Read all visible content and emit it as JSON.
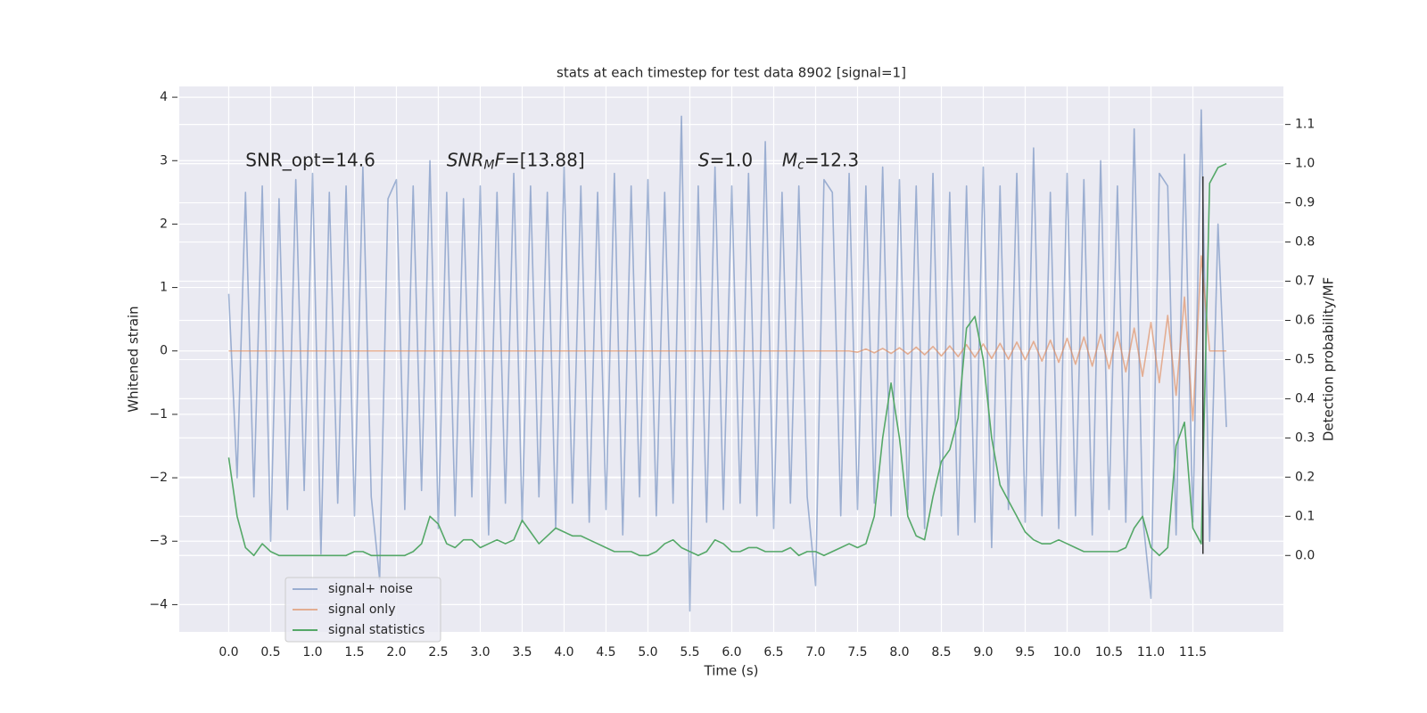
{
  "chart_data": {
    "type": "line",
    "title": "stats at each timestep for test data 8902 [signal=1]",
    "xlabel": "Time (s)",
    "ylabel": "Whitened strain",
    "y2label": "Detection probability/MF",
    "x": [
      0.0,
      0.1,
      0.2,
      0.3,
      0.4,
      0.5,
      0.6,
      0.7,
      0.8,
      0.9,
      1.0,
      1.1,
      1.2,
      1.3,
      1.4,
      1.5,
      1.6,
      1.7,
      1.8,
      1.9,
      2.0,
      2.1,
      2.2,
      2.3,
      2.4,
      2.5,
      2.6,
      2.7,
      2.8,
      2.9,
      3.0,
      3.1,
      3.2,
      3.3,
      3.4,
      3.5,
      3.6,
      3.7,
      3.8,
      3.9,
      4.0,
      4.1,
      4.2,
      4.3,
      4.4,
      4.5,
      4.6,
      4.7,
      4.8,
      4.9,
      5.0,
      5.1,
      5.2,
      5.3,
      5.4,
      5.5,
      5.6,
      5.7,
      5.8,
      5.9,
      6.0,
      6.1,
      6.2,
      6.3,
      6.4,
      6.5,
      6.6,
      6.7,
      6.8,
      6.9,
      7.0,
      7.1,
      7.2,
      7.3,
      7.4,
      7.5,
      7.6,
      7.7,
      7.8,
      7.9,
      8.0,
      8.1,
      8.2,
      8.3,
      8.4,
      8.5,
      8.6,
      8.7,
      8.8,
      8.9,
      9.0,
      9.1,
      9.2,
      9.3,
      9.4,
      9.5,
      9.6,
      9.7,
      9.8,
      9.9,
      10.0,
      10.1,
      10.2,
      10.3,
      10.4,
      10.5,
      10.6,
      10.7,
      10.8,
      10.9,
      11.0,
      11.1,
      11.2,
      11.3,
      11.4,
      11.5,
      11.6,
      11.7,
      11.8,
      11.9
    ],
    "series": [
      {
        "name": "signal+ noise",
        "color": "#4c72b0",
        "alpha": 0.5,
        "values": [
          0.9,
          -2.0,
          2.5,
          -2.3,
          2.6,
          -3.0,
          2.4,
          -2.5,
          2.7,
          -2.2,
          2.8,
          -3.2,
          2.5,
          -2.4,
          2.6,
          -2.6,
          2.9,
          -2.3,
          -3.6,
          2.4,
          2.7,
          -2.5,
          2.6,
          -2.2,
          3.0,
          -2.8,
          2.5,
          -2.6,
          2.4,
          -2.3,
          2.6,
          -2.9,
          2.5,
          -2.4,
          2.8,
          -2.7,
          2.6,
          -2.3,
          2.5,
          -2.8,
          2.9,
          -2.4,
          2.6,
          -2.7,
          2.5,
          -2.5,
          2.8,
          -2.9,
          2.6,
          -2.3,
          2.7,
          -2.6,
          2.5,
          -2.4,
          3.7,
          -4.1,
          2.6,
          -2.7,
          2.9,
          -2.5,
          2.6,
          -2.4,
          2.8,
          -2.6,
          3.3,
          -2.8,
          2.5,
          -2.4,
          2.6,
          -2.3,
          -3.7,
          2.7,
          2.5,
          -2.6,
          2.8,
          -2.5,
          2.6,
          -2.4,
          2.9,
          -2.6,
          2.7,
          -2.5,
          2.6,
          -2.8,
          2.8,
          -2.6,
          2.5,
          -2.9,
          2.6,
          -2.7,
          2.9,
          -3.1,
          2.6,
          -2.5,
          2.8,
          -2.7,
          3.2,
          -2.6,
          2.5,
          -2.8,
          2.8,
          -2.6,
          2.7,
          -2.9,
          3.0,
          -2.5,
          2.6,
          -2.7,
          3.5,
          -2.6,
          -3.9,
          2.8,
          2.6,
          -2.9,
          3.1,
          -2.7,
          3.8,
          -3.0,
          2.0,
          -1.2
        ]
      },
      {
        "name": "signal only",
        "color": "#dd8452",
        "alpha": 0.6,
        "values": [
          0,
          0,
          0,
          0,
          0,
          0,
          0,
          0,
          0,
          0,
          0,
          0,
          0,
          0,
          0,
          0,
          0,
          0,
          0,
          0,
          0,
          0,
          0,
          0,
          0,
          0,
          0,
          0,
          0,
          0,
          0,
          0,
          0,
          0,
          0,
          0,
          0,
          0,
          0,
          0,
          0,
          0,
          0,
          0,
          0,
          0,
          0,
          0,
          0,
          0,
          0,
          0,
          0,
          0,
          0,
          0,
          0,
          0,
          0,
          0,
          0,
          0,
          0,
          0,
          0,
          0,
          0,
          0,
          0,
          0,
          0,
          0,
          0,
          0,
          0,
          -0.02,
          0.03,
          -0.03,
          0.04,
          -0.04,
          0.05,
          -0.05,
          0.06,
          -0.06,
          0.07,
          -0.08,
          0.08,
          -0.09,
          0.1,
          -0.1,
          0.11,
          -0.12,
          0.12,
          -0.13,
          0.14,
          -0.14,
          0.15,
          -0.16,
          0.17,
          -0.18,
          0.2,
          -0.21,
          0.22,
          -0.24,
          0.26,
          -0.28,
          0.3,
          -0.33,
          0.36,
          -0.4,
          0.45,
          -0.5,
          0.56,
          -0.7,
          0.85,
          -1.1,
          1.5,
          0,
          0,
          0
        ]
      },
      {
        "name": "signal statistics",
        "color": "#55a868",
        "alpha": 1,
        "axis": "y2",
        "values": [
          0.25,
          0.1,
          0.02,
          0.0,
          0.03,
          0.01,
          0.0,
          0.0,
          0.0,
          0.0,
          0.0,
          0.0,
          0.0,
          0.0,
          0.0,
          0.01,
          0.01,
          0.0,
          0.0,
          0.0,
          0.0,
          0.0,
          0.01,
          0.03,
          0.1,
          0.08,
          0.03,
          0.02,
          0.04,
          0.04,
          0.02,
          0.03,
          0.04,
          0.03,
          0.04,
          0.09,
          0.06,
          0.03,
          0.05,
          0.07,
          0.06,
          0.05,
          0.05,
          0.04,
          0.03,
          0.02,
          0.01,
          0.01,
          0.01,
          0.0,
          0.0,
          0.01,
          0.03,
          0.04,
          0.02,
          0.01,
          0.0,
          0.01,
          0.04,
          0.03,
          0.01,
          0.01,
          0.02,
          0.02,
          0.01,
          0.01,
          0.01,
          0.02,
          0.0,
          0.01,
          0.01,
          0.0,
          0.01,
          0.02,
          0.03,
          0.02,
          0.03,
          0.1,
          0.3,
          0.44,
          0.3,
          0.1,
          0.05,
          0.04,
          0.15,
          0.24,
          0.27,
          0.35,
          0.58,
          0.61,
          0.5,
          0.3,
          0.18,
          0.14,
          0.1,
          0.06,
          0.04,
          0.03,
          0.03,
          0.04,
          0.03,
          0.02,
          0.01,
          0.01,
          0.01,
          0.01,
          0.01,
          0.02,
          0.07,
          0.1,
          0.02,
          0.0,
          0.02,
          0.28,
          0.34,
          0.07,
          0.03,
          0.95,
          0.99,
          1.0
        ]
      }
    ],
    "vline": {
      "x": 11.62,
      "ymin": -3.2,
      "ymax": 2.75,
      "color": "#333333"
    },
    "annotations": [
      [
        {
          "text": "SNR_opt=14.6"
        }
      ],
      [
        {
          "text": "SNR",
          "italic": true
        },
        {
          "text": "M",
          "italic": true,
          "sub": true
        },
        {
          "text": "F",
          "italic": true
        },
        {
          "text": "=[13.88]"
        }
      ],
      [
        {
          "text": "S",
          "italic": true
        },
        {
          "text": "=1.0"
        }
      ],
      [
        {
          "text": "M",
          "italic": true
        },
        {
          "text": "c",
          "italic": true,
          "sub": true
        },
        {
          "text": "=12.3"
        }
      ]
    ],
    "xlim": [
      -0.59,
      12.58
    ],
    "xticks": [
      {
        "value": 0,
        "label": "0.0"
      },
      {
        "value": 0.5,
        "label": "0.5"
      },
      {
        "value": 1,
        "label": "1.0"
      },
      {
        "value": 1.5,
        "label": "1.5"
      },
      {
        "value": 2,
        "label": "2.0"
      },
      {
        "value": 2.5,
        "label": "2.5"
      },
      {
        "value": 3,
        "label": "3.0"
      },
      {
        "value": 3.5,
        "label": "3.5"
      },
      {
        "value": 4,
        "label": "4.0"
      },
      {
        "value": 4.5,
        "label": "4.5"
      },
      {
        "value": 5,
        "label": "5.0"
      },
      {
        "value": 5.5,
        "label": "5.5"
      },
      {
        "value": 6,
        "label": "6.0"
      },
      {
        "value": 6.5,
        "label": "6.5"
      },
      {
        "value": 7,
        "label": "7.0"
      },
      {
        "value": 7.5,
        "label": "7.5"
      },
      {
        "value": 8,
        "label": "8.0"
      },
      {
        "value": 8.5,
        "label": "8.5"
      },
      {
        "value": 9,
        "label": "9.0"
      },
      {
        "value": 9.5,
        "label": "9.5"
      },
      {
        "value": 10,
        "label": "10.0"
      },
      {
        "value": 10.5,
        "label": "10.5"
      },
      {
        "value": 11,
        "label": "11.0"
      },
      {
        "value": 11.5,
        "label": "11.5"
      }
    ],
    "ylim": [
      -4.43,
      4.17
    ],
    "yticks": [
      {
        "value": -4,
        "label": "−4"
      },
      {
        "value": -3,
        "label": "−3"
      },
      {
        "value": -2,
        "label": "−2"
      },
      {
        "value": -1,
        "label": "−1"
      },
      0,
      1,
      2,
      3,
      4
    ],
    "y2lim": [
      -0.195,
      1.197
    ],
    "y2ticks": [
      {
        "value": 0,
        "label": "0.0"
      },
      0.1,
      0.2,
      0.3,
      0.4,
      0.5,
      0.6,
      0.7,
      0.8,
      0.9,
      {
        "value": 1,
        "label": "1.0"
      },
      1.1
    ],
    "grid": true,
    "legend": "lower left"
  }
}
